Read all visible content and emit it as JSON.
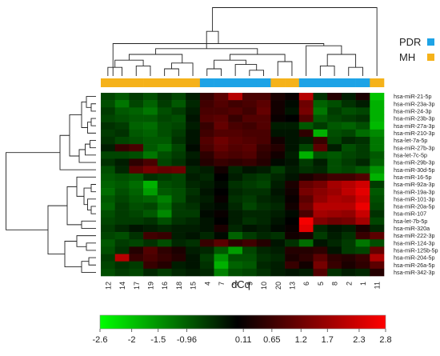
{
  "chart_data": {
    "type": "heatmap",
    "title": "",
    "colorbar_title": "dCq",
    "colorbar_ticks": [
      "-2.6",
      "-2",
      "-1.5",
      "-0.96",
      "0.11",
      "0.65",
      "1.2",
      "1.7",
      "2.3",
      "2.8"
    ],
    "color_range": [
      -2.6,
      2.8
    ],
    "colors": {
      "low": "#00ff00",
      "mid": "#000000",
      "high": "#ff0000"
    },
    "group_colors": {
      "PDR": "#1ea3e6",
      "MH": "#f5b21a"
    },
    "legend": [
      {
        "label": "PDR",
        "color": "#1ea3e6"
      },
      {
        "label": "MH",
        "color": "#f5b21a"
      }
    ],
    "columns": [
      "12",
      "14",
      "17",
      "19",
      "16",
      "18",
      "15",
      "4",
      "7",
      "3",
      "9",
      "10",
      "20",
      "13",
      "6",
      "5",
      "8",
      "2",
      "1",
      "11"
    ],
    "column_groups": [
      "MH",
      "MH",
      "MH",
      "MH",
      "MH",
      "MH",
      "MH",
      "PDR",
      "PDR",
      "PDR",
      "PDR",
      "PDR",
      "MH",
      "MH",
      "PDR",
      "PDR",
      "PDR",
      "PDR",
      "PDR",
      "MH"
    ],
    "rows": [
      "hsa-miR-21-5p",
      "hsa-miR-23a-3p",
      "hsa-miR-24-3p",
      "hsa-miR-23b-3p",
      "hsa-miR-27a-3p",
      "hsa-miR-210-3p",
      "hsa-let-7a-5p",
      "hsa-miR-27b-3p",
      "hsa-let-7c-5p",
      "hsa-miR-29b-3p",
      "hsa-miR-30d-5p",
      "hsa-miR-16-5p",
      "hsa-miR-92a-3p",
      "hsa-miR-19a-3p",
      "hsa-miR-101-3p",
      "hsa-miR-20a-5p",
      "hsa-miR-107",
      "hsa-let-7b-5p",
      "hsa-miR-320a",
      "hsa-miR-222-3p",
      "hsa-miR-124-3p",
      "hsa-miR-125b-5p",
      "hsa-miR-204-5p",
      "hsa-miR-26a-5p",
      "hsa-miR-342-3p"
    ],
    "values": [
      [
        -0.7,
        -0.9,
        -0.6,
        -0.8,
        -0.5,
        -0.7,
        -0.3,
        0.6,
        1.0,
        2.0,
        0.8,
        0.8,
        0.3,
        0.1,
        2.0,
        -0.5,
        0.4,
        -0.3,
        0.3,
        -2.0
      ],
      [
        -0.8,
        -1.2,
        -0.7,
        -1.0,
        -0.6,
        -0.9,
        -0.4,
        0.7,
        0.9,
        0.7,
        0.8,
        1.0,
        0.2,
        -0.1,
        1.2,
        -1.0,
        -0.8,
        -0.5,
        -0.3,
        -1.8
      ],
      [
        -0.6,
        -0.9,
        -1.0,
        -1.2,
        -0.8,
        -0.6,
        -0.3,
        0.8,
        0.8,
        0.9,
        0.7,
        1.1,
        0.2,
        -0.2,
        1.3,
        -1.2,
        -0.6,
        -0.8,
        -0.7,
        -1.8
      ],
      [
        -0.7,
        -0.8,
        -0.9,
        -0.9,
        -0.7,
        -0.8,
        -0.2,
        0.9,
        1.0,
        0.6,
        0.9,
        0.9,
        0.1,
        0.0,
        0.9,
        -0.9,
        -0.7,
        -0.6,
        -0.5,
        -1.8
      ],
      [
        -0.5,
        -0.6,
        -1.0,
        -1.1,
        -0.8,
        -0.7,
        -0.3,
        0.6,
        1.1,
        0.8,
        0.7,
        0.9,
        -0.3,
        -0.3,
        -0.9,
        -0.6,
        -0.9,
        -1.0,
        -0.8,
        -1.9
      ],
      [
        -0.6,
        -0.5,
        -0.9,
        -1.0,
        -0.8,
        -0.6,
        -0.2,
        0.7,
        0.9,
        0.9,
        0.8,
        0.8,
        -0.2,
        -0.2,
        0.5,
        -1.8,
        -0.8,
        -0.7,
        -1.1,
        -1.4
      ],
      [
        -0.5,
        -0.7,
        -0.8,
        -0.9,
        -0.9,
        -0.5,
        -0.2,
        0.9,
        1.2,
        1.0,
        0.9,
        0.8,
        0.2,
        -0.2,
        -0.3,
        0.6,
        -0.7,
        -0.4,
        -0.5,
        -1.2
      ],
      [
        -0.3,
        0.6,
        0.8,
        -0.9,
        -1.1,
        -0.7,
        -0.1,
        0.8,
        1.1,
        0.9,
        1.0,
        0.6,
        0.4,
        -0.2,
        -0.7,
        1.0,
        -0.3,
        -0.8,
        -0.6,
        -1.2
      ],
      [
        -0.7,
        -0.7,
        -0.8,
        -1.2,
        -0.8,
        -0.6,
        -0.3,
        0.5,
        0.9,
        0.8,
        0.9,
        0.5,
        0.2,
        -0.3,
        -1.8,
        -0.8,
        -0.9,
        -0.7,
        -0.6,
        -0.9
      ],
      [
        -0.5,
        -0.3,
        0.5,
        0.8,
        -0.7,
        -0.5,
        -0.2,
        0.4,
        0.6,
        0.5,
        0.6,
        0.4,
        -0.1,
        -0.2,
        -0.6,
        -0.3,
        -0.8,
        -0.6,
        -0.4,
        -1.0
      ],
      [
        -0.8,
        -0.4,
        1.0,
        1.3,
        1.1,
        1.2,
        -0.4,
        -0.3,
        0.2,
        -0.4,
        -0.2,
        -0.3,
        -0.6,
        -0.3,
        -0.5,
        -0.4,
        -0.8,
        -0.7,
        -0.9,
        -1.5
      ],
      [
        -0.9,
        -0.8,
        -0.9,
        -0.5,
        -0.6,
        -0.7,
        -0.3,
        -0.4,
        0.0,
        -0.3,
        -0.5,
        -0.6,
        -0.4,
        -0.2,
        0.3,
        0.5,
        0.7,
        0.7,
        0.9,
        -1.8
      ],
      [
        -1.0,
        -0.9,
        -1.1,
        -1.8,
        -0.8,
        -0.7,
        -0.4,
        -0.3,
        -0.1,
        -0.5,
        -0.6,
        -0.7,
        -0.3,
        0.3,
        1.1,
        1.3,
        1.8,
        2.0,
        2.3,
        -0.6
      ],
      [
        -1.1,
        -0.8,
        -1.0,
        -1.6,
        -0.9,
        -0.8,
        -0.5,
        -0.2,
        0.0,
        -0.4,
        -0.5,
        -0.5,
        -0.2,
        0.2,
        1.3,
        1.5,
        1.7,
        2.1,
        2.5,
        -0.9
      ],
      [
        -0.9,
        -0.7,
        -0.9,
        -1.0,
        -1.3,
        -0.8,
        -0.4,
        -0.3,
        0.1,
        -0.5,
        -0.6,
        -0.4,
        -0.3,
        0.1,
        1.0,
        1.6,
        1.9,
        1.8,
        2.3,
        -0.8
      ],
      [
        -1.0,
        -0.6,
        -0.8,
        -0.7,
        -1.1,
        -0.6,
        -0.5,
        -0.2,
        -0.1,
        -0.4,
        -0.7,
        -0.5,
        -0.4,
        0.2,
        1.2,
        2.0,
        2.0,
        2.0,
        2.6,
        -0.7
      ],
      [
        -0.8,
        -0.6,
        -0.7,
        -0.9,
        -1.4,
        -0.6,
        -0.6,
        -0.1,
        0.1,
        -0.3,
        -0.4,
        -0.4,
        -0.3,
        -0.1,
        0.8,
        1.8,
        1.7,
        1.6,
        2.2,
        -0.5
      ],
      [
        -0.7,
        -0.6,
        -0.6,
        -0.5,
        -0.8,
        -0.5,
        -0.4,
        -0.2,
        0.0,
        -0.3,
        -0.5,
        -0.4,
        -0.2,
        0.0,
        2.7,
        1.4,
        1.2,
        1.3,
        1.8,
        -0.7
      ],
      [
        -0.6,
        -0.4,
        -0.2,
        -0.3,
        -0.4,
        -0.3,
        -0.3,
        -0.2,
        0.3,
        -0.4,
        -0.2,
        -0.3,
        -0.1,
        0.1,
        2.5,
        -0.4,
        -0.2,
        -0.3,
        0.3,
        -0.4
      ],
      [
        -0.7,
        -0.8,
        -0.5,
        0.7,
        0.6,
        -0.3,
        -0.2,
        -0.4,
        -0.1,
        -1.0,
        -0.6,
        -0.4,
        -0.5,
        0.2,
        0.3,
        -0.6,
        -0.3,
        -0.5,
        0.6,
        1.0
      ],
      [
        -0.9,
        -0.6,
        -0.7,
        -0.5,
        -0.8,
        -0.4,
        -0.5,
        0.6,
        1.0,
        0.5,
        0.7,
        0.4,
        -0.2,
        -0.5,
        -1.1,
        -0.2,
        -0.4,
        -0.6,
        -1.2,
        -0.8
      ],
      [
        -0.8,
        -0.5,
        0.4,
        0.9,
        0.5,
        0.3,
        -0.3,
        -0.4,
        -0.9,
        -1.6,
        -0.7,
        -0.4,
        -0.3,
        0.4,
        0.4,
        0.5,
        -0.2,
        -0.6,
        -0.7,
        1.1
      ],
      [
        -0.6,
        2.0,
        0.6,
        0.8,
        0.6,
        0.4,
        -0.2,
        -0.6,
        -1.5,
        -0.8,
        -0.8,
        -0.5,
        -0.4,
        0.3,
        0.5,
        1.0,
        0.5,
        0.4,
        0.6,
        1.9
      ],
      [
        -0.7,
        -0.5,
        -0.6,
        0.6,
        0.4,
        -0.3,
        -0.2,
        -0.5,
        -1.8,
        -1.0,
        -0.9,
        -0.4,
        -0.3,
        0.6,
        0.2,
        1.3,
        0.6,
        0.3,
        0.5,
        1.0
      ],
      [
        -0.8,
        -0.6,
        -0.7,
        -0.4,
        -0.6,
        -0.4,
        -0.3,
        -0.4,
        -1.3,
        -0.8,
        -0.7,
        -0.5,
        -0.3,
        -0.2,
        -0.3,
        0.9,
        -0.5,
        -0.3,
        -0.4,
        0.4
      ]
    ]
  }
}
